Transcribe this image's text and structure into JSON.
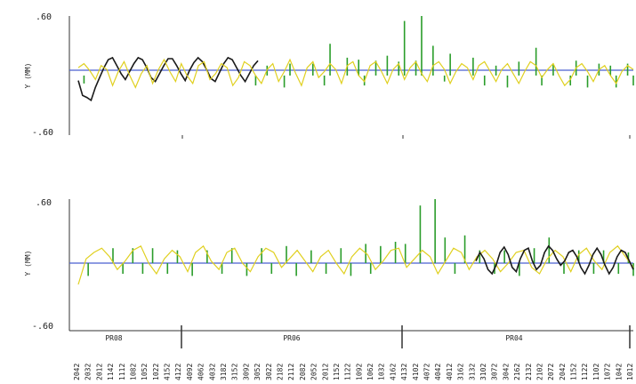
{
  "chart_data": [
    {
      "type": "line",
      "ylabel": "Y (MM)",
      "ytick_labels": [
        ".60",
        "-.60"
      ],
      "ylim": [
        -0.6,
        0.6
      ],
      "series": [
        {
          "color": "#1a1a1a",
          "values": [
            -0.05,
            -0.2,
            -0.22,
            -0.25,
            -0.12,
            -0.02,
            0.08,
            0.16,
            0.18,
            0.1,
            0.02,
            -0.04,
            0.04,
            0.12,
            0.18,
            0.16,
            0.08,
            -0.02,
            -0.06,
            0.02,
            0.1,
            0.17,
            0.17,
            0.1,
            0.02,
            -0.05,
            0.05,
            0.13,
            0.18,
            0.14,
            0.06,
            -0.03,
            -0.06,
            0.03,
            0.12,
            0.18,
            0.16,
            0.08,
            0.0,
            -0.06,
            0.02,
            0.1,
            0.15
          ]
        },
        {
          "color": "#e0d020",
          "values": [
            0.08,
            0.12,
            0.05,
            -0.04,
            0.1,
            0.06,
            -0.1,
            0.04,
            0.14,
            0.0,
            -0.12,
            0.02,
            0.1,
            -0.08,
            0.06,
            0.16,
            0.04,
            -0.06,
            0.12,
            0.0,
            -0.08,
            0.1,
            0.14,
            -0.04,
            0.02,
            0.12,
            0.08,
            -0.1,
            -0.02,
            0.14,
            0.1,
            0.0,
            -0.08,
            0.06,
            0.12,
            -0.06,
            0.04,
            0.16,
            0.02,
            -0.1,
            0.08,
            0.14,
            -0.02,
            0.04,
            0.12,
            0.06,
            -0.08,
            0.1,
            0.14,
            0.0,
            -0.06,
            0.1,
            0.14,
            0.04,
            -0.08,
            0.06,
            0.12,
            -0.04,
            0.08,
            0.14,
            0.02,
            -0.06,
            0.1,
            0.14,
            0.06,
            -0.08,
            0.04,
            0.12,
            0.08,
            -0.04,
            0.1,
            0.14,
            0.04,
            -0.06,
            0.06,
            0.12,
            0.02,
            -0.08,
            0.04,
            0.14,
            0.1,
            -0.02,
            0.06,
            0.12,
            0.0,
            -0.1,
            -0.04,
            0.08,
            0.12,
            0.04,
            -0.06,
            0.06,
            0.1,
            0.0,
            -0.08,
            0.04,
            0.1,
            0.06
          ]
        },
        {
          "color": "#2a9d2a",
          "type": "bar",
          "values": [
            0.0,
            -0.08,
            0.0,
            0.0,
            0.0,
            0.0,
            0.0,
            0.0,
            0.0,
            0.0,
            0.0,
            0.0,
            0.0,
            0.0,
            0.0,
            0.0,
            0.0,
            0.0,
            0.0,
            0.0,
            0.0,
            0.0,
            0.0,
            0.0,
            0.0,
            0.0,
            0.0,
            0.0,
            0.0,
            0.0,
            0.0,
            -0.1,
            0.0,
            0.1,
            0.0,
            0.0,
            -0.12,
            0.12,
            0.0,
            0.0,
            0.0,
            0.12,
            0.0,
            -0.1,
            0.32,
            0.0,
            0.0,
            0.18,
            0.0,
            0.16,
            -0.1,
            0.0,
            0.15,
            0.0,
            0.2,
            0.0,
            0.14,
            0.55,
            0.0,
            0.15,
            0.6,
            0.0,
            0.3,
            0.0,
            -0.06,
            0.22,
            0.0,
            0.0,
            0.0,
            0.18,
            0.0,
            -0.1,
            0.0,
            0.1,
            0.0,
            -0.12,
            0.0,
            0.14,
            0.0,
            0.0,
            0.28,
            -0.1,
            0.0,
            0.12,
            0.0,
            0.0,
            -0.1,
            0.15,
            0.0,
            -0.12,
            0.0,
            0.12,
            0.0,
            0.1,
            -0.12,
            0.0,
            0.12,
            -0.1
          ]
        }
      ]
    },
    {
      "type": "line",
      "ylabel": "Y (MM)",
      "ytick_labels": [
        ".60",
        "-.60"
      ],
      "ylim": [
        -0.6,
        0.6
      ],
      "series": [
        {
          "color": "#e0d020",
          "values": [
            -0.2,
            0.04,
            0.1,
            0.14,
            0.06,
            -0.06,
            0.02,
            0.12,
            0.16,
            0.0,
            -0.1,
            0.04,
            0.12,
            0.06,
            -0.08,
            0.1,
            0.16,
            0.02,
            -0.06,
            0.1,
            0.14,
            0.0,
            -0.08,
            0.06,
            0.14,
            0.1,
            -0.04,
            0.04,
            0.12,
            0.02,
            -0.08,
            0.06,
            0.12,
            0.0,
            -0.1,
            0.06,
            0.14,
            0.08,
            -0.06,
            0.02,
            0.12,
            0.14,
            -0.04,
            0.04,
            0.12,
            0.06,
            -0.1,
            0.02,
            0.14,
            0.1,
            -0.06,
            0.06,
            0.12,
            0.04,
            -0.08,
            0.0,
            0.1,
            0.12,
            -0.04,
            -0.1,
            0.04,
            0.12,
            0.06,
            -0.08,
            0.08,
            0.14,
            0.02,
            -0.06,
            0.1,
            0.16,
            0.06,
            -0.04
          ]
        },
        {
          "color": "#1a1a1a",
          "values": [
            0.02,
            0.1,
            0.04,
            -0.06,
            -0.1,
            -0.02,
            0.1,
            0.15,
            0.08,
            -0.04,
            -0.08,
            0.04,
            0.12,
            0.14,
            0.02,
            -0.06,
            -0.02,
            0.1,
            0.16,
            0.12,
            0.04,
            -0.02,
            0.02,
            0.1,
            0.12,
            0.06,
            -0.04,
            -0.1,
            -0.02,
            0.08,
            0.14,
            0.08,
            -0.02,
            -0.1,
            -0.04,
            0.06,
            0.12,
            0.1,
            0.02,
            -0.06
          ]
        },
        {
          "color": "#2a9d2a",
          "type": "bar",
          "values": [
            0.0,
            0.0,
            -0.12,
            0.0,
            0.0,
            0.0,
            0.0,
            0.14,
            0.0,
            -0.1,
            0.0,
            0.14,
            0.0,
            -0.1,
            0.0,
            0.14,
            0.0,
            0.0,
            -0.1,
            0.0,
            0.12,
            0.0,
            0.0,
            -0.12,
            0.0,
            0.0,
            0.12,
            0.0,
            0.0,
            -0.1,
            0.0,
            0.14,
            0.0,
            0.0,
            -0.12,
            0.0,
            0.0,
            0.14,
            0.0,
            -0.1,
            0.0,
            0.0,
            0.16,
            0.0,
            -0.12,
            0.0,
            0.0,
            0.12,
            0.0,
            0.0,
            -0.1,
            0.0,
            0.0,
            0.14,
            0.0,
            -0.12,
            0.0,
            0.0,
            0.18,
            -0.1,
            0.0,
            0.16,
            0.0,
            0.0,
            0.2,
            0.0,
            0.18,
            0.0,
            0.0,
            0.54,
            0.0,
            0.0,
            0.6,
            0.0,
            0.24,
            0.0,
            -0.1,
            0.0,
            0.26,
            0.0,
            0.0,
            0.12,
            0.0,
            0.0,
            -0.1,
            0.0,
            0.12,
            0.0,
            0.0,
            -0.12,
            0.0,
            0.0,
            0.14,
            0.0,
            0.0,
            0.24,
            0.0,
            0.0,
            -0.1,
            0.0,
            0.0,
            0.12,
            0.0,
            0.0,
            -0.1,
            0.0,
            0.12,
            0.0,
            0.0,
            -0.1,
            0.0,
            0.1,
            -0.12
          ]
        }
      ]
    }
  ],
  "x_axis": {
    "groups": [
      "PR08",
      "PR06",
      "PR04"
    ],
    "tick_labels": [
      "2042",
      "2032",
      "2012",
      "1142",
      "1112",
      "1082",
      "1052",
      "1022",
      "4152",
      "4122",
      "4092",
      "4062",
      "4032",
      "3182",
      "3152",
      "3092",
      "3052",
      "3022",
      "2182",
      "2112",
      "2082",
      "2052",
      "2012",
      "1152",
      "1122",
      "1092",
      "1062",
      "1032",
      "4162",
      "4132",
      "4102",
      "4072",
      "4042",
      "4012",
      "3162",
      "3132",
      "3102",
      "3072",
      "3042",
      "2162",
      "2132",
      "2102",
      "2072",
      "2042",
      "1152",
      "1122",
      "1102",
      "1072",
      "1042",
      "1012"
    ]
  }
}
